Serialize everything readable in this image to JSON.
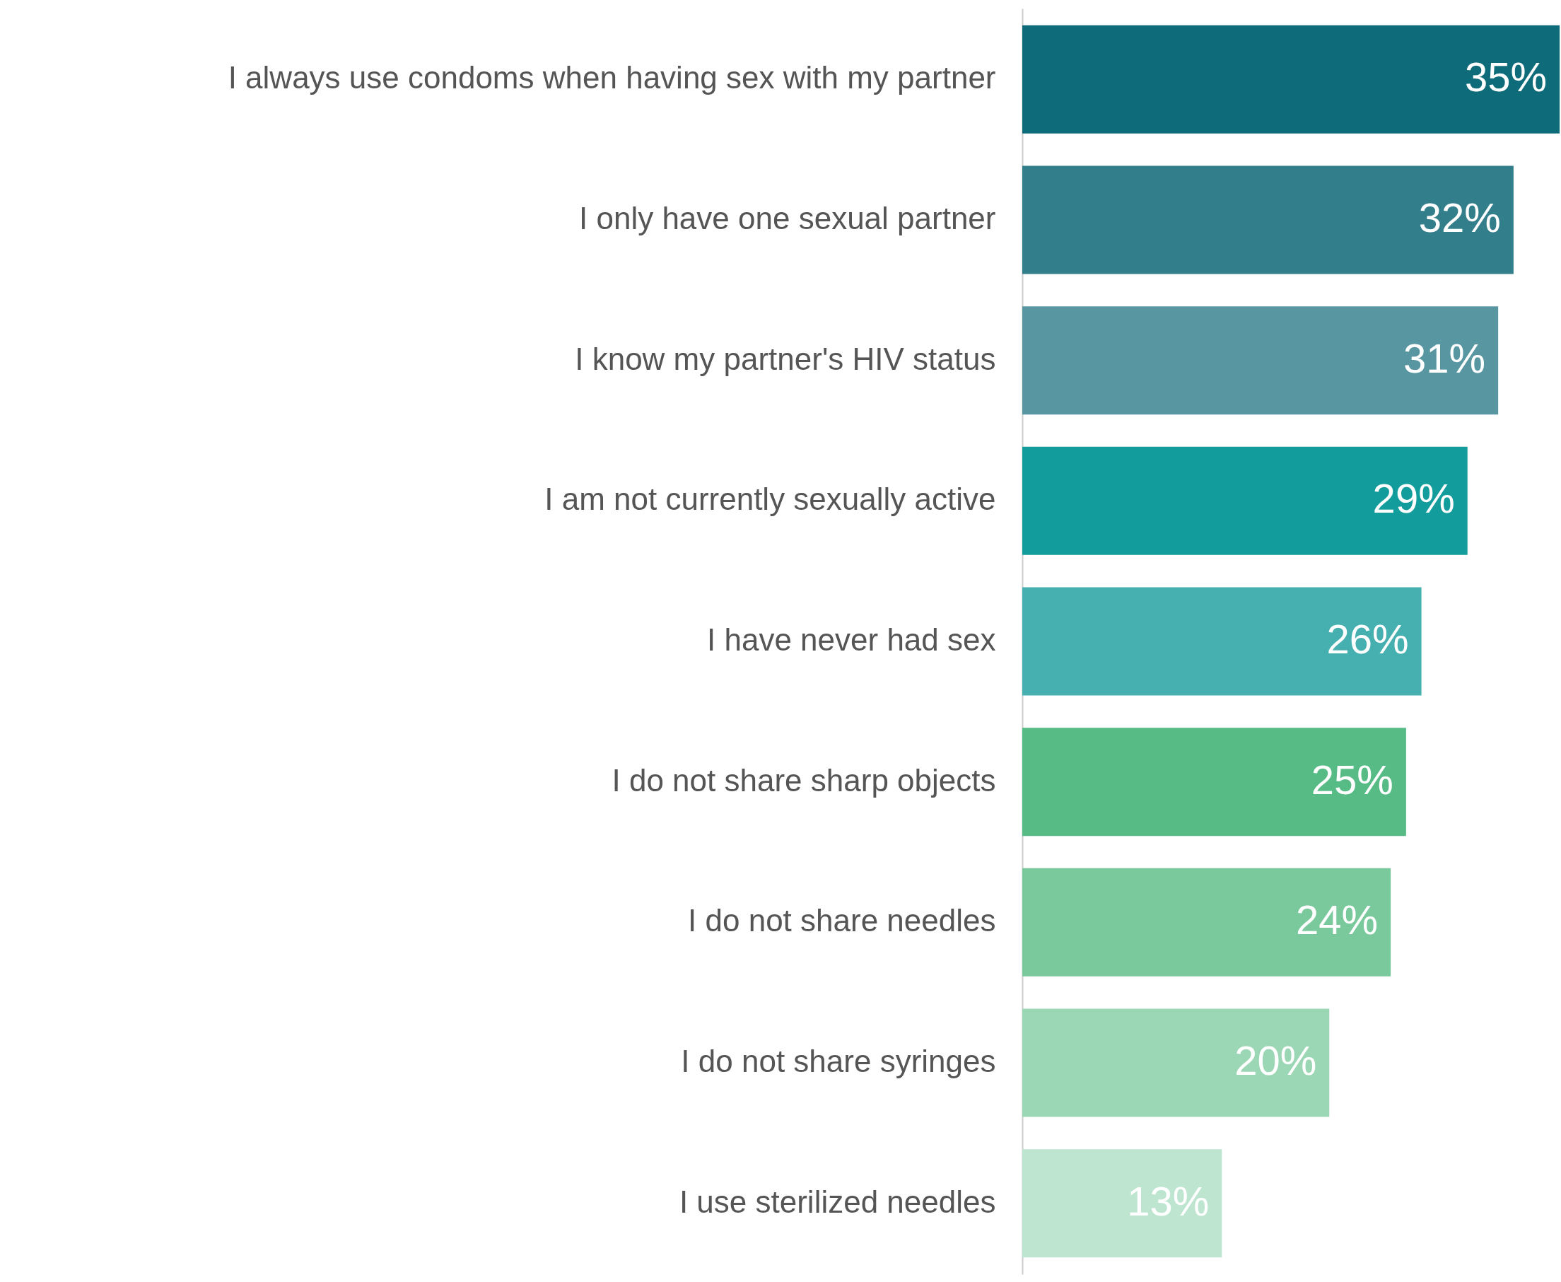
{
  "chart_data": {
    "type": "bar",
    "orientation": "horizontal",
    "value_labels": [
      "35%",
      "32%",
      "31%",
      "29%",
      "26%",
      "25%",
      "24%",
      "20%",
      "13%"
    ],
    "categories": [
      "I always use condoms when having sex with my partner",
      "I only have one sexual partner",
      "I know my partner's HIV status",
      "I am not currently sexually active",
      "I have never had sex",
      "I do not share sharp objects",
      "I do not share needles",
      "I do not share syringes",
      "I use sterilized needles"
    ],
    "values": [
      35,
      32,
      31,
      29,
      26,
      25,
      24,
      20,
      13
    ],
    "colors": [
      "#0e6b7a",
      "#327f8b",
      "#5897a2",
      "#139c9c",
      "#46b0b0",
      "#56bb84",
      "#79c99c",
      "#9bd6b5",
      "#bde5cf"
    ]
  }
}
